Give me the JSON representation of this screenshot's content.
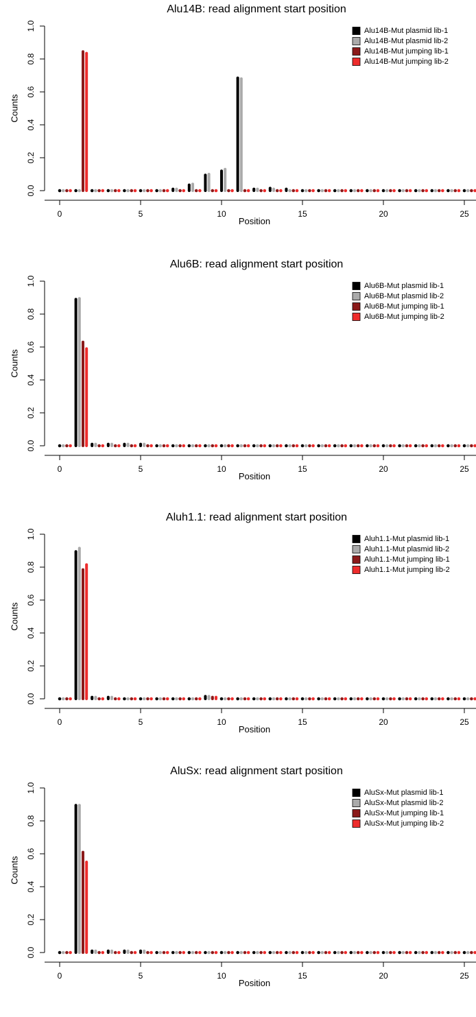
{
  "colors": {
    "plasmid_lib_1": "#000000",
    "plasmid_lib_2": "#aaaaaa",
    "jumping_lib_1": "#8b1a1a",
    "jumping_lib_2": "#ee2c2c"
  },
  "chart_data": [
    {
      "type": "bar",
      "title": "Alu14B: read alignment start position",
      "xlabel": "Position",
      "ylabel": "Counts",
      "xlim": [
        0,
        25.5
      ],
      "ylim": [
        0,
        1.0
      ],
      "xticks": [
        0,
        5,
        10,
        15,
        20,
        25
      ],
      "yticks": [
        0.0,
        0.2,
        0.4,
        0.6,
        0.8,
        1.0
      ],
      "ytick_labels": [
        "0.0",
        "0.2",
        "0.4",
        "0.6",
        "0.8",
        "1.0"
      ],
      "legend_position": "top-right",
      "x": [
        0,
        1,
        2,
        3,
        4,
        5,
        6,
        7,
        8,
        9,
        10,
        11,
        12,
        13,
        14,
        15,
        16,
        17,
        18,
        19,
        20,
        21,
        22,
        23,
        24,
        25
      ],
      "series": [
        {
          "name": "Alu14B-Mut plasmid lib-1",
          "values": [
            0,
            0,
            0,
            0,
            0,
            0,
            0,
            0.01,
            0.035,
            0.095,
            0.12,
            0.685,
            0.01,
            0.015,
            0.01,
            0.005,
            0.005,
            0,
            0,
            0,
            0,
            0,
            0,
            0,
            0,
            0
          ]
        },
        {
          "name": "Alu14B-Mut plasmid lib-2",
          "values": [
            0,
            0,
            0,
            0,
            0,
            0,
            0,
            0.01,
            0.04,
            0.1,
            0.13,
            0.68,
            0.01,
            0.01,
            0.005,
            0.005,
            0,
            0,
            0,
            0,
            0,
            0,
            0,
            0,
            0,
            0
          ]
        },
        {
          "name": "Alu14B-Mut jumping lib-1",
          "values": [
            0.005,
            0.845,
            0,
            0.005,
            0.005,
            0.005,
            0,
            0,
            0,
            0,
            0,
            0,
            0,
            0,
            0,
            0,
            0,
            0,
            0,
            0,
            0,
            0,
            0,
            0,
            0,
            0
          ]
        },
        {
          "name": "Alu14B-Mut jumping lib-2",
          "values": [
            0.005,
            0.835,
            0,
            0.005,
            0.005,
            0.005,
            0,
            0,
            0,
            0,
            0,
            0,
            0,
            0,
            0,
            0,
            0,
            0,
            0,
            0,
            0,
            0,
            0,
            0,
            0,
            0
          ]
        }
      ]
    },
    {
      "type": "bar",
      "title": "Alu6B: read alignment start position",
      "xlabel": "Position",
      "ylabel": "Counts",
      "xlim": [
        0,
        25.5
      ],
      "ylim": [
        0,
        1.0
      ],
      "xticks": [
        0,
        5,
        10,
        15,
        20,
        25
      ],
      "yticks": [
        0.0,
        0.2,
        0.4,
        0.6,
        0.8,
        1.0
      ],
      "ytick_labels": [
        "0.0",
        "0.2",
        "0.4",
        "0.6",
        "0.8",
        "1.0"
      ],
      "legend_position": "top-right",
      "x": [
        0,
        1,
        2,
        3,
        4,
        5,
        6,
        7,
        8,
        9,
        10,
        11,
        12,
        13,
        14,
        15,
        16,
        17,
        18,
        19,
        20,
        21,
        22,
        23,
        24,
        25
      ],
      "series": [
        {
          "name": "Alu6B-Mut plasmid lib-1",
          "values": [
            0,
            0.89,
            0.01,
            0.01,
            0.01,
            0.01,
            0.005,
            0.005,
            0,
            0,
            0,
            0,
            0,
            0,
            0,
            0,
            0,
            0,
            0,
            0,
            0,
            0,
            0,
            0,
            0,
            0
          ]
        },
        {
          "name": "Alu6B-Mut plasmid lib-2",
          "values": [
            0,
            0.895,
            0.01,
            0.01,
            0.01,
            0.01,
            0.005,
            0.005,
            0,
            0,
            0,
            0,
            0,
            0,
            0,
            0,
            0,
            0,
            0,
            0,
            0,
            0,
            0,
            0,
            0,
            0
          ]
        },
        {
          "name": "Alu6B-Mut jumping lib-1",
          "values": [
            0,
            0.63,
            0.005,
            0.005,
            0.005,
            0.005,
            0,
            0,
            0,
            0,
            0,
            0,
            0,
            0,
            0,
            0,
            0,
            0,
            0,
            0,
            0,
            0,
            0,
            0,
            0,
            0
          ]
        },
        {
          "name": "Alu6B-Mut jumping lib-2",
          "values": [
            0,
            0.59,
            0.005,
            0.005,
            0.005,
            0.005,
            0,
            0,
            0,
            0,
            0,
            0,
            0,
            0,
            0,
            0,
            0,
            0,
            0,
            0,
            0,
            0,
            0,
            0,
            0,
            0
          ]
        }
      ]
    },
    {
      "type": "bar",
      "title": "Aluh1.1: read alignment start position",
      "xlabel": "Position",
      "ylabel": "Counts",
      "xlim": [
        0,
        25.5
      ],
      "ylim": [
        0,
        1.0
      ],
      "xticks": [
        0,
        5,
        10,
        15,
        20,
        25
      ],
      "yticks": [
        0.0,
        0.2,
        0.4,
        0.6,
        0.8,
        1.0
      ],
      "ytick_labels": [
        "0.0",
        "0.2",
        "0.4",
        "0.6",
        "0.8",
        "1.0"
      ],
      "legend_position": "top-right",
      "x": [
        0,
        1,
        2,
        3,
        4,
        5,
        6,
        7,
        8,
        9,
        10,
        11,
        12,
        13,
        14,
        15,
        16,
        17,
        18,
        19,
        20,
        21,
        22,
        23,
        24,
        25
      ],
      "series": [
        {
          "name": "Aluh1.1-Mut plasmid lib-1",
          "values": [
            0,
            0.895,
            0.01,
            0.01,
            0,
            0,
            0,
            0,
            0,
            0.015,
            0,
            0,
            0,
            0,
            0,
            0,
            0,
            0,
            0,
            0,
            0,
            0,
            0,
            0,
            0,
            0
          ]
        },
        {
          "name": "Aluh1.1-Mut plasmid lib-2",
          "values": [
            0,
            0.915,
            0.01,
            0.01,
            0,
            0,
            0,
            0,
            0,
            0.015,
            0,
            0,
            0,
            0,
            0,
            0,
            0,
            0,
            0,
            0,
            0,
            0,
            0,
            0,
            0,
            0
          ]
        },
        {
          "name": "Aluh1.1-Mut jumping lib-1",
          "values": [
            0,
            0.785,
            0.005,
            0.005,
            0,
            0,
            0,
            0,
            0,
            0.01,
            0,
            0,
            0,
            0,
            0,
            0,
            0,
            0,
            0,
            0,
            0,
            0,
            0,
            0,
            0,
            0
          ]
        },
        {
          "name": "Aluh1.1-Mut jumping lib-2",
          "values": [
            0,
            0.815,
            0.005,
            0.005,
            0,
            0,
            0,
            0,
            0,
            0.01,
            0,
            0,
            0,
            0,
            0,
            0,
            0,
            0,
            0,
            0,
            0,
            0,
            0,
            0,
            0,
            0
          ]
        }
      ]
    },
    {
      "type": "bar",
      "title": "AluSx: read alignment start position",
      "xlabel": "Position",
      "ylabel": "Counts",
      "xlim": [
        0,
        25.5
      ],
      "ylim": [
        0,
        1.0
      ],
      "xticks": [
        0,
        5,
        10,
        15,
        20,
        25
      ],
      "yticks": [
        0.0,
        0.2,
        0.4,
        0.6,
        0.8,
        1.0
      ],
      "ytick_labels": [
        "0.0",
        "0.2",
        "0.4",
        "0.6",
        "0.8",
        "1.0"
      ],
      "legend_position": "top-right",
      "x": [
        0,
        1,
        2,
        3,
        4,
        5,
        6,
        7,
        8,
        9,
        10,
        11,
        12,
        13,
        14,
        15,
        16,
        17,
        18,
        19,
        20,
        21,
        22,
        23,
        24,
        25
      ],
      "series": [
        {
          "name": "AluSx-Mut plasmid lib-1",
          "values": [
            0,
            0.895,
            0.01,
            0.01,
            0.01,
            0.01,
            0.005,
            0.005,
            0,
            0,
            0,
            0,
            0,
            0,
            0,
            0,
            0,
            0,
            0,
            0,
            0,
            0,
            0,
            0,
            0,
            0
          ]
        },
        {
          "name": "AluSx-Mut plasmid lib-2",
          "values": [
            0,
            0.895,
            0.01,
            0.01,
            0.01,
            0.01,
            0.005,
            0.005,
            0,
            0,
            0,
            0,
            0,
            0,
            0,
            0,
            0,
            0,
            0,
            0,
            0,
            0,
            0,
            0,
            0,
            0
          ]
        },
        {
          "name": "AluSx-Mut jumping lib-1",
          "values": [
            0,
            0.61,
            0.005,
            0.005,
            0.005,
            0.005,
            0.005,
            0,
            0,
            0,
            0,
            0,
            0,
            0,
            0,
            0,
            0,
            0,
            0,
            0,
            0,
            0,
            0,
            0,
            0,
            0
          ]
        },
        {
          "name": "AluSx-Mut jumping lib-2",
          "values": [
            0,
            0.55,
            0.005,
            0.005,
            0.005,
            0.005,
            0.005,
            0,
            0,
            0,
            0,
            0,
            0,
            0,
            0,
            0,
            0,
            0,
            0,
            0,
            0,
            0,
            0,
            0,
            0,
            0
          ]
        }
      ]
    }
  ]
}
